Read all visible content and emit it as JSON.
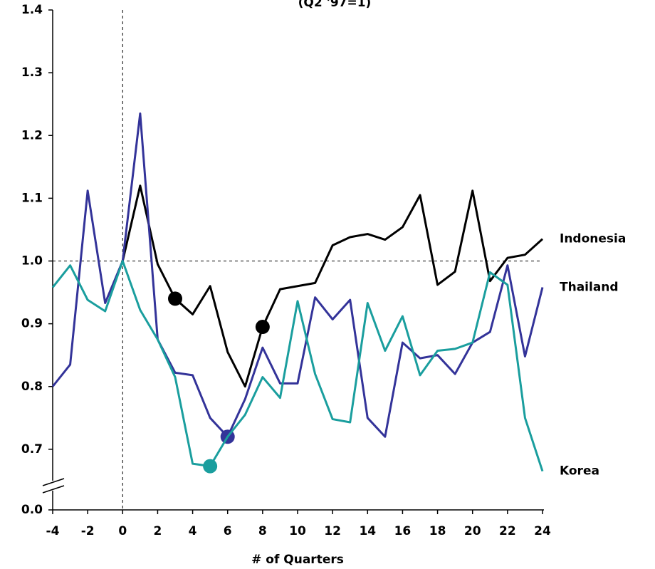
{
  "chart_data": {
    "type": "line",
    "subtitle": "(Q2 '97=1)",
    "x_label": "# of Quarters",
    "x": [
      -4,
      -3,
      -2,
      -1,
      0,
      1,
      2,
      3,
      4,
      5,
      6,
      7,
      8,
      9,
      10,
      11,
      12,
      13,
      14,
      15,
      16,
      17,
      18,
      19,
      20,
      21,
      22,
      23,
      24
    ],
    "xlim": [
      -4,
      24
    ],
    "xticks": [
      -4,
      -2,
      0,
      2,
      4,
      6,
      8,
      10,
      12,
      14,
      16,
      18,
      20,
      22,
      24
    ],
    "ylim": [
      0,
      1.4
    ],
    "y_break": [
      0,
      0.6
    ],
    "yticks": [
      {
        "value": 0,
        "label": "0.0"
      },
      0.7,
      0.8,
      0.9,
      {
        "value": 1,
        "label": "1.0"
      },
      1.1,
      1.2,
      1.3,
      1.4
    ],
    "ref_x": 0,
    "ref_y": 1,
    "series": [
      {
        "name": "Indonesia",
        "color": "#000000",
        "markers": [
          7,
          12
        ],
        "values": [
          null,
          null,
          null,
          null,
          1.0,
          1.12,
          0.995,
          0.94,
          0.915,
          0.96,
          0.855,
          0.8,
          0.895,
          0.955,
          0.96,
          0.965,
          1.025,
          1.038,
          1.043,
          1.034,
          1.054,
          1.105,
          0.962,
          0.983,
          1.112,
          0.968,
          1.005,
          1.01,
          1.035
        ]
      },
      {
        "name": "Thailand",
        "color": "#333399",
        "markers": [
          10
        ],
        "values": [
          0.8,
          0.835,
          1.112,
          0.933,
          1.0,
          1.235,
          0.875,
          0.822,
          0.818,
          0.75,
          0.72,
          0.78,
          0.862,
          0.805,
          0.805,
          0.942,
          0.907,
          0.938,
          0.75,
          0.72,
          0.87,
          0.845,
          0.85,
          0.82,
          0.87,
          0.887,
          0.993,
          0.848,
          0.958
        ]
      },
      {
        "name": "Korea",
        "color": "#1a9e9e",
        "markers": [
          9
        ],
        "values": [
          0.958,
          0.993,
          0.938,
          0.92,
          1.0,
          0.922,
          0.875,
          0.815,
          0.677,
          0.673,
          0.72,
          0.755,
          0.815,
          0.782,
          0.936,
          0.82,
          0.748,
          0.743,
          0.933,
          0.857,
          0.912,
          0.818,
          0.857,
          0.86,
          0.87,
          0.982,
          0.962,
          0.75,
          0.665
        ]
      }
    ]
  }
}
